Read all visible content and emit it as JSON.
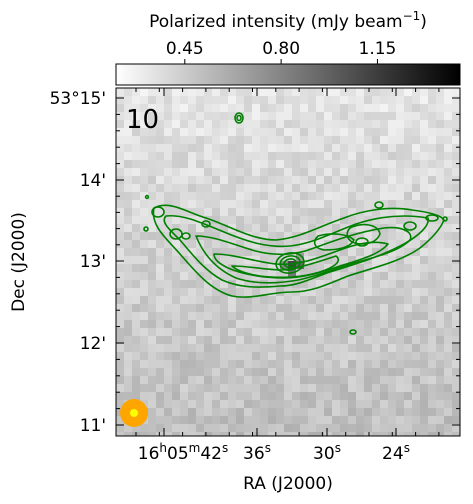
{
  "chart_data": {
    "type": "heatmap",
    "panel_label": "10",
    "colorbar": {
      "title": "Polarized intensity (mJy beam",
      "title_sup": "−1",
      "title_close": ")",
      "range": [
        0.2,
        1.45
      ],
      "ticks": [
        0.45,
        0.8,
        1.15
      ],
      "tick_labels": [
        "0.45",
        "0.80",
        "1.15"
      ],
      "colormap": "gray_r"
    },
    "xlabel": "RA (J2000)",
    "ylabel": "Dec (J2000)",
    "x_ticks": [
      {
        "main": "16",
        "sup1": "h",
        "mid": "05",
        "sup2": "m",
        "rest": "42",
        "sup3": "s"
      },
      {
        "main": "36",
        "sup1": "s"
      },
      {
        "main": "30",
        "sup1": "s"
      },
      {
        "main": "24",
        "sup1": "s"
      }
    ],
    "y_ticks": [
      "53°15'",
      "14'",
      "13'",
      "12'",
      "11'"
    ],
    "contour_color": "#008000",
    "beam_color": "#ffa500",
    "beam_core_color": "#ffff00",
    "peak_color": "#555555"
  }
}
